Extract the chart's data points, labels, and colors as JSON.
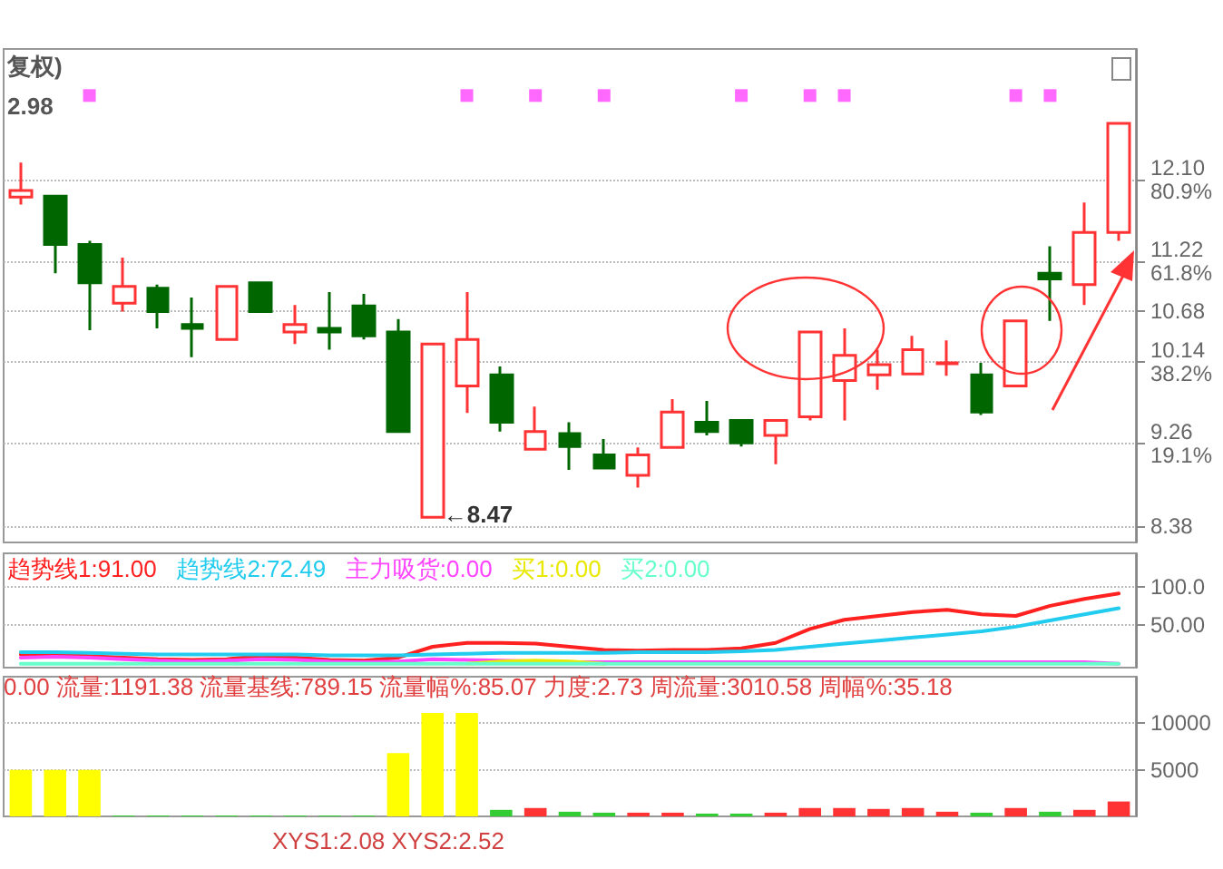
{
  "chart_data": [
    {
      "type": "candlestick",
      "annotations": [
        "复权)",
        "2.98",
        "←8.47"
      ],
      "categories": [
        null,
        null,
        null,
        null,
        null,
        null,
        null,
        null,
        null,
        null,
        null,
        null,
        null,
        null,
        null,
        null,
        null,
        null,
        null,
        null,
        null,
        null,
        null,
        null,
        null,
        null,
        null,
        null,
        null,
        null,
        null,
        null,
        null
      ],
      "ohlc": [
        [
          11.91,
          12.28,
          11.83,
          11.98
        ],
        [
          11.92,
          11.92,
          11.09,
          11.4
        ],
        [
          11.4,
          11.44,
          10.48,
          10.99
        ],
        [
          10.77,
          11.26,
          10.68,
          10.95
        ],
        [
          10.93,
          10.97,
          10.5,
          10.68
        ],
        [
          10.54,
          10.83,
          10.19,
          10.5
        ],
        [
          10.38,
          10.95,
          10.38,
          10.95
        ],
        [
          10.99,
          11.0,
          10.68,
          10.68
        ],
        [
          10.46,
          10.75,
          10.33,
          10.54
        ],
        [
          10.5,
          10.89,
          10.27,
          10.46
        ],
        [
          10.74,
          10.87,
          10.38,
          10.42
        ],
        [
          10.46,
          10.6,
          9.39,
          9.39
        ],
        [
          8.47,
          10.33,
          8.47,
          10.33
        ],
        [
          9.88,
          10.89,
          9.59,
          10.38
        ],
        [
          10.0,
          10.09,
          9.39,
          9.49
        ],
        [
          9.2,
          9.66,
          9.2,
          9.39
        ],
        [
          9.37,
          9.49,
          8.98,
          9.23
        ],
        [
          9.14,
          9.31,
          9.0,
          9.0
        ],
        [
          8.92,
          9.22,
          8.79,
          9.14
        ],
        [
          9.22,
          9.74,
          9.22,
          9.6
        ],
        [
          9.49,
          9.72,
          9.35,
          9.39
        ],
        [
          9.51,
          9.51,
          9.23,
          9.27
        ],
        [
          9.35,
          9.51,
          9.04,
          9.51
        ],
        [
          9.55,
          10.46,
          9.51,
          10.46
        ],
        [
          9.94,
          10.5,
          9.51,
          10.21
        ],
        [
          10.0,
          10.27,
          9.84,
          10.11
        ],
        [
          10.01,
          10.42,
          10.01,
          10.27
        ],
        [
          10.12,
          10.37,
          9.99,
          10.13
        ],
        [
          10.0,
          10.13,
          9.57,
          9.6
        ],
        [
          9.88,
          10.58,
          9.88,
          10.58
        ],
        [
          11.09,
          11.38,
          10.58,
          11.03
        ],
        [
          10.97,
          11.85,
          10.75,
          11.53
        ],
        [
          11.53,
          12.7,
          11.44,
          12.7
        ]
      ],
      "colors": [
        "#ff3333",
        "#006600",
        "#006600",
        "#ff3333",
        "#006600",
        "#006600",
        "#ff3333",
        "#006600",
        "#ff3333",
        "#006600",
        "#006600",
        "#006600",
        "#ff3333",
        "#ff3333",
        "#006600",
        "#ff3333",
        "#006600",
        "#006600",
        "#ff3333",
        "#ff3333",
        "#006600",
        "#006600",
        "#ff3333",
        "#ff3333",
        "#ff3333",
        "#ff3333",
        "#ff3333",
        "#ff3333",
        "#006600",
        "#ff3333",
        "#006600",
        "#ff3333",
        "#ff3333"
      ],
      "series": [
        {
          "type": "scatter",
          "color": "#ff44ff",
          "values": [
            null,
            null,
            13.0,
            null,
            null,
            null,
            null,
            null,
            null,
            null,
            null,
            null,
            null,
            13.0,
            null,
            13.0,
            null,
            13.0,
            null,
            null,
            null,
            13.0,
            null,
            13.0,
            13.0,
            null,
            null,
            null,
            null,
            13.0,
            13.0,
            null,
            null
          ]
        }
      ],
      "marker": "square",
      "ylim": [
        8.2,
        13.5
      ],
      "yticks": [
        {
          "value": 12.1,
          "label": "12.10\n80.9%"
        },
        {
          "value": 11.22,
          "label": "11.22\n61.8%"
        },
        {
          "value": 10.68,
          "label": "10.68"
        },
        {
          "value": 10.14,
          "label": "10.14\n38.2%"
        },
        {
          "value": 9.26,
          "label": "9.26\n19.1%"
        },
        {
          "value": 8.38,
          "label": "8.38"
        }
      ],
      "grid": "y",
      "tick_labels": "y"
    },
    {
      "type": "line",
      "categories": [
        null,
        null,
        null,
        null,
        null,
        null,
        null,
        null,
        null,
        null,
        null,
        null,
        null,
        null,
        null,
        null,
        null,
        null,
        null,
        null,
        null,
        null,
        null,
        null,
        null,
        null,
        null,
        null,
        null,
        null,
        null,
        null,
        null
      ],
      "series": [
        {
          "name": "趋势线1:91.00",
          "color": "#ff2020",
          "values": [
            12,
            12,
            10,
            8,
            6,
            5,
            6,
            10,
            8,
            5,
            4,
            8,
            22,
            27,
            27,
            26,
            22,
            18,
            17,
            18,
            18,
            20,
            27,
            45,
            57,
            62,
            67,
            70,
            64,
            62,
            75,
            84,
            91
          ]
        },
        {
          "name": "趋势线2:72.49",
          "color": "#22ccee",
          "values": [
            15,
            15,
            14,
            13,
            12,
            12,
            12,
            12,
            12,
            11,
            11,
            11,
            12,
            13,
            14,
            14,
            14,
            14,
            15,
            15,
            15,
            16,
            18,
            22,
            26,
            30,
            34,
            38,
            42,
            48,
            56,
            64,
            72
          ]
        },
        {
          "name": "主力吸货:0.00",
          "color": "#ff44ff",
          "values": [
            8,
            9,
            8,
            6,
            4,
            3,
            4,
            6,
            5,
            3,
            2,
            3,
            6,
            5,
            4,
            3,
            2,
            2,
            2,
            2,
            2,
            2,
            2,
            2,
            2,
            2,
            2,
            2,
            2,
            2,
            2,
            2,
            0
          ]
        },
        {
          "name": "买1:0.00",
          "color": "#e8e800",
          "values": [
            null,
            null,
            null,
            null,
            null,
            null,
            null,
            null,
            null,
            null,
            null,
            null,
            null,
            0,
            3,
            4,
            3,
            0,
            null,
            null,
            null,
            null,
            null,
            null,
            null,
            null,
            null,
            null,
            null,
            null,
            null,
            null,
            null
          ]
        },
        {
          "name": "买2:0.00",
          "color": "#66ffcc",
          "values": [
            0,
            0,
            0,
            0,
            0,
            0,
            0,
            0,
            0,
            0,
            0,
            0,
            0,
            0,
            0,
            0,
            0,
            0,
            0,
            0,
            0,
            0,
            0,
            0,
            0,
            0,
            0,
            0,
            0,
            0,
            0,
            0,
            0
          ]
        }
      ],
      "ylim": [
        -5,
        143
      ],
      "yticks": [
        {
          "value": 50,
          "label": "50.00"
        },
        {
          "value": 100,
          "label": "100.0"
        }
      ],
      "grid": "y",
      "marker": "none",
      "line_style": "solid",
      "tick_labels": "y"
    },
    {
      "type": "bar",
      "annotations": [
        "0.00 流量:1191.38 流量基线:789.15 流量幅%:85.07 力度:2.73 周流量:3010.58 周幅%:35.18",
        "XYS1:2.08 XYS2:2.52"
      ],
      "categories": [
        null,
        null,
        null,
        null,
        null,
        null,
        null,
        null,
        null,
        null,
        null,
        null,
        null,
        null,
        null,
        null,
        null,
        null,
        null,
        null,
        null,
        null,
        null,
        null,
        null,
        null,
        null,
        null,
        null,
        null,
        null,
        null,
        null
      ],
      "values": [
        5000,
        5000,
        5000,
        100,
        100,
        100,
        100,
        100,
        100,
        100,
        100,
        6800,
        11100,
        11100,
        700,
        900,
        500,
        400,
        400,
        400,
        300,
        300,
        400,
        900,
        900,
        800,
        900,
        500,
        400,
        900,
        500,
        700,
        1600
      ],
      "colors": [
        "#ffff00",
        "#ffff00",
        "#ffff00",
        "#33cc33",
        "#33cc33",
        "#33cc33",
        "#33cc33",
        "#33cc33",
        "#33cc33",
        "#33cc33",
        "#33cc33",
        "#ffff00",
        "#ffff00",
        "#ffff00",
        "#33cc33",
        "#ff3333",
        "#33cc33",
        "#33cc33",
        "#ff3333",
        "#ff3333",
        "#33cc33",
        "#33cc33",
        "#ff3333",
        "#ff3333",
        "#ff3333",
        "#ff3333",
        "#ff3333",
        "#ff3333",
        "#33cc33",
        "#ff3333",
        "#33cc33",
        "#ff3333",
        "#ff3333"
      ],
      "ylim": [
        0,
        15000
      ],
      "yticks": [
        5000,
        10000
      ],
      "grid": "y",
      "tick_labels": "y"
    }
  ]
}
